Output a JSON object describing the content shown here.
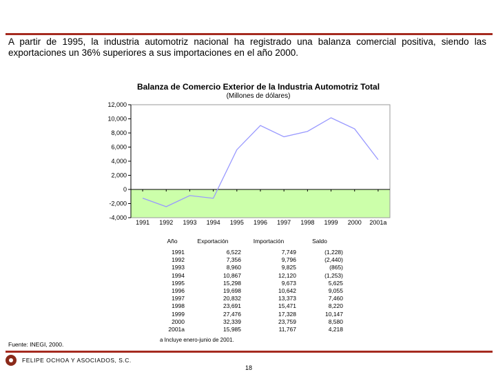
{
  "intro_text": "A partir de 1995, la industria automotriz nacional ha registrado una balanza comercial positiva, siendo las exportaciones un 36% superiores a sus importaciones en el año 2000.",
  "chart_data": {
    "type": "line",
    "title": "Balanza de Comercio Exterior de la Industria Automotriz Total",
    "subtitle": "(Millones de dólares)",
    "categories": [
      "1991",
      "1992",
      "1993",
      "1994",
      "1995",
      "1996",
      "1997",
      "1998",
      "1999",
      "2000",
      "2001a"
    ],
    "series": [
      {
        "values": [
          -1228,
          -2440,
          -865,
          -1253,
          5625,
          9055,
          7460,
          8220,
          10147,
          8580,
          4218
        ]
      }
    ],
    "ylim": [
      -4000,
      12000
    ],
    "yticks": [
      12000,
      10000,
      8000,
      6000,
      4000,
      2000,
      0,
      -2000,
      -4000
    ],
    "ytick_labels": [
      "12,000",
      "10,000",
      "8,000",
      "6,000",
      "4,000",
      "2,000",
      "0",
      "-2,000",
      "-4,000"
    ],
    "line_color": "#9999ff",
    "plot_background": "#ffffff",
    "negative_region_color": "#ccffaa",
    "grid": false,
    "legend": "none"
  },
  "table": {
    "headers": [
      "Año",
      "Exportación",
      "Importación",
      "Saldo"
    ],
    "rows": [
      [
        "1991",
        "6,522",
        "7,749",
        "(1,228)"
      ],
      [
        "1992",
        "7,356",
        "9,796",
        "(2,440)"
      ],
      [
        "1993",
        "8,960",
        "9,825",
        "(865)"
      ],
      [
        "1994",
        "10,867",
        "12,120",
        "(1,253)"
      ],
      [
        "1995",
        "15,298",
        "9,673",
        "5,625"
      ],
      [
        "1996",
        "19,698",
        "10,642",
        "9,055"
      ],
      [
        "1997",
        "20,832",
        "13,373",
        "7,460"
      ],
      [
        "1998",
        "23,691",
        "15,471",
        "8,220"
      ],
      [
        "1999",
        "27,476",
        "17,328",
        "10,147"
      ],
      [
        "2000",
        "32,339",
        "23,759",
        "8,580"
      ],
      [
        "2001a",
        "15,985",
        "11,767",
        "4,218"
      ]
    ],
    "footnote": "a Incluye enero-junio de 2001."
  },
  "source": "Fuente: INEGI, 2000.",
  "company": "FELIPE OCHOA Y ASOCIADOS, S.C.",
  "page_number": "18",
  "accent_color": "#a52a1f"
}
